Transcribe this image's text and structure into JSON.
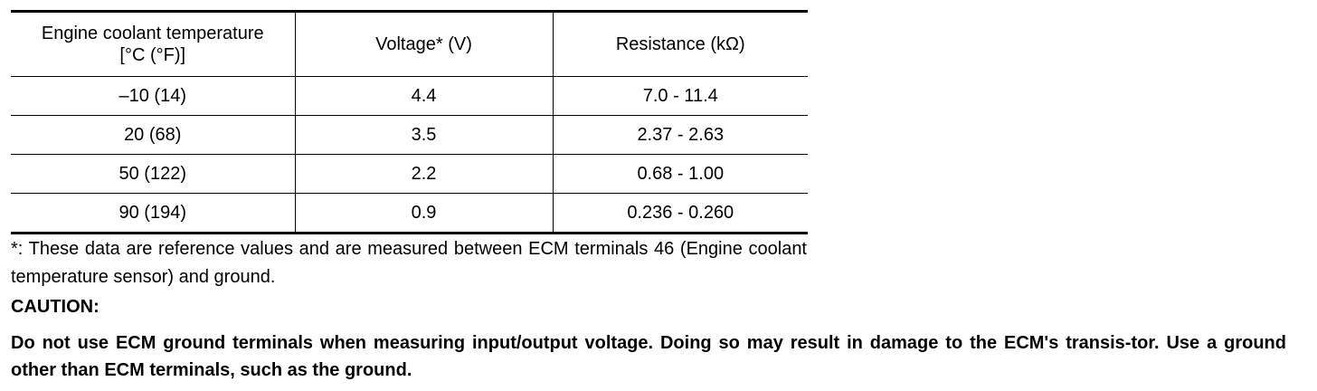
{
  "table": {
    "header": [
      "Engine coolant temperature\n[°C (°F)]",
      "Voltage* (V)",
      "Resistance (kΩ)"
    ],
    "rows": [
      [
        "–10 (14)",
        "4.4",
        "7.0 - 11.4"
      ],
      [
        "20 (68)",
        "3.5",
        "2.37 - 2.63"
      ],
      [
        "50 (122)",
        "2.2",
        "0.68 - 1.00"
      ],
      [
        "90 (194)",
        "0.9",
        "0.236 - 0.260"
      ]
    ]
  },
  "footnote": "*: These data are reference values and are measured between ECM terminals 46 (Engine coolant temperature sensor) and ground.",
  "caution": {
    "heading": "CAUTION:",
    "text": "Do not use ECM ground terminals when measuring input/output voltage. Doing so may result in damage to the ECM's transis-tor. Use a ground other than ECM terminals, such as the ground."
  }
}
